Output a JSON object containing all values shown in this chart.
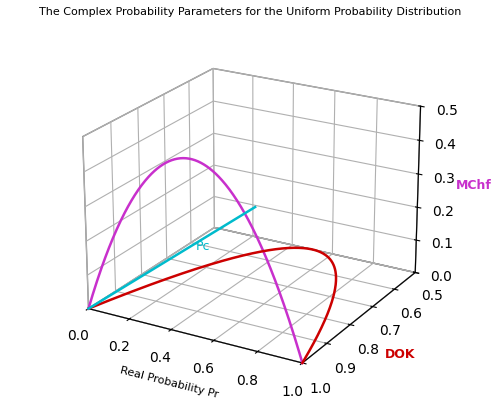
{
  "title": "The Complex Probability Parameters for the Uniform Probability Distribution",
  "xlabel": "Real Probability Pr",
  "ylabel": "DOK",
  "zlabel": "MChf",
  "xlim": [
    0,
    1
  ],
  "ylim": [
    0.5,
    1.0
  ],
  "zlim": [
    0,
    0.5
  ],
  "xticks": [
    0,
    0.2,
    0.4,
    0.6,
    0.8,
    1.0
  ],
  "yticks": [
    0.5,
    0.6,
    0.7,
    0.8,
    0.9,
    1.0
  ],
  "zticks": [
    0,
    0.1,
    0.2,
    0.3,
    0.4,
    0.5
  ],
  "magenta_color": "#C830CC",
  "red_color": "#CC0000",
  "cyan_color": "#00BBCC",
  "pc_label": "Pc",
  "ylabel_color": "#CC0000",
  "zlabel_color": "#C830CC",
  "elev": 22,
  "azim": -60
}
